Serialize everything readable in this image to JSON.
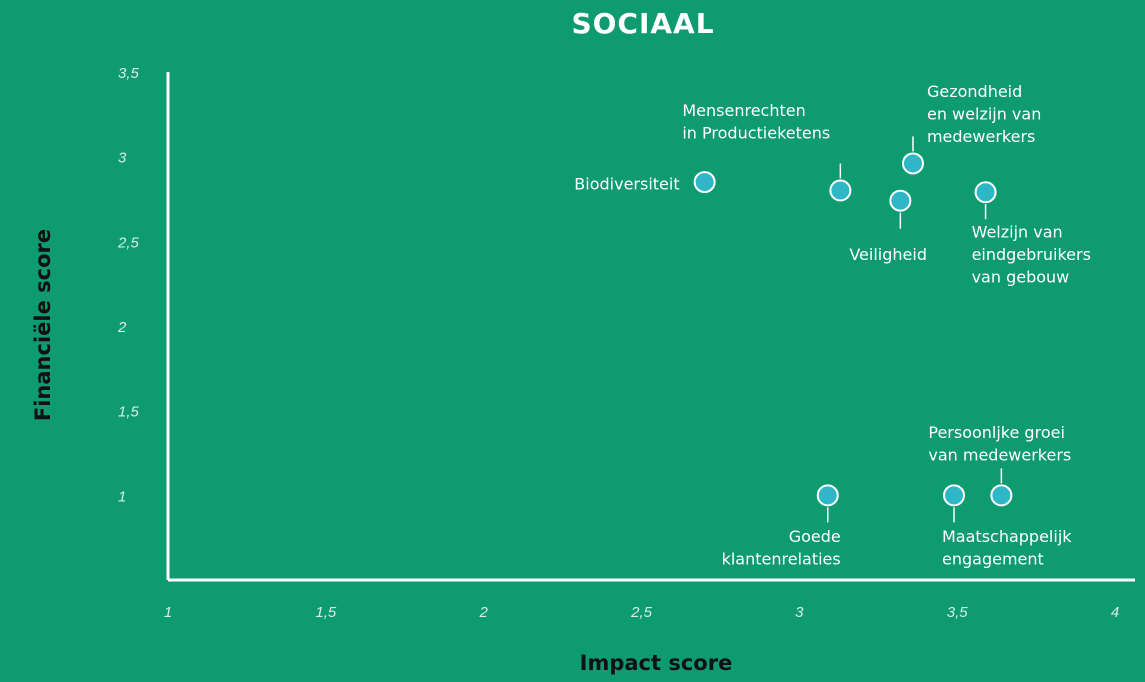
{
  "chart_data": {
    "type": "scatter",
    "title": "SOCIAAL",
    "xlabel": "Impact score",
    "ylabel": "Financiële score",
    "x": [
      2.7,
      3.13,
      3.36,
      3.32,
      3.59,
      3.09,
      3.49,
      3.64
    ],
    "values": [
      2.85,
      2.8,
      2.96,
      2.74,
      2.79,
      1,
      1,
      1
    ],
    "labels": [
      [
        "Biodiversiteit"
      ],
      [
        "Mensenrechten",
        "in Productieketens"
      ],
      [
        "Gezondheid",
        "en welzijn van",
        "medewerkers"
      ],
      [
        "Veiligheid"
      ],
      [
        "Welzijn van",
        "eindgebruikers",
        "van gebouw"
      ],
      [
        "Goede",
        "klantenrelaties"
      ],
      [
        "Maatschappelijk",
        "engagement"
      ],
      [
        "Persoonljke groei",
        "van medewerkers"
      ]
    ],
    "color": "#2fb7c8",
    "xlim": [
      1,
      4
    ],
    "xticks": [
      1,
      {
        "value": 1.5,
        "label": "1,5"
      },
      2,
      {
        "value": 2.5,
        "label": "2,5"
      },
      3,
      {
        "value": 3.5,
        "label": "3,5"
      },
      4
    ],
    "ylim": [
      0.5,
      3.5
    ],
    "yticks": [
      1,
      {
        "value": 1.5,
        "label": "1,5"
      },
      2,
      {
        "value": 2.5,
        "label": "2,5"
      },
      3,
      {
        "value": 3.5,
        "label": "3,5"
      }
    ],
    "grid": false
  }
}
